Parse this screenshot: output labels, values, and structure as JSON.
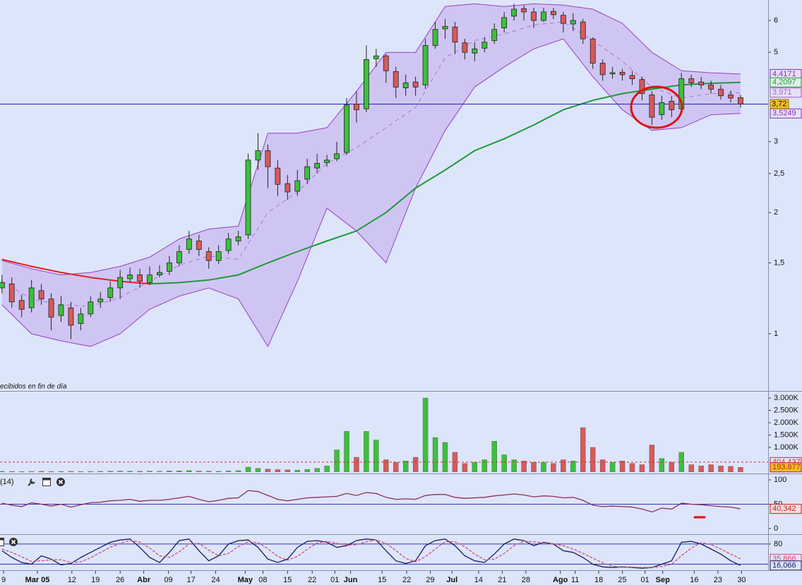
{
  "chart_data": [
    {
      "type": "candlestick",
      "log_scale": true,
      "xlim": [
        -0.2,
        77.8
      ],
      "ylim": [
        0.724,
        6.745
      ],
      "yticks": [
        6,
        5,
        3,
        {
          "value": 2.5,
          "label": "2,5"
        },
        2,
        {
          "value": 1.5,
          "label": "1,5"
        },
        1
      ],
      "up_color": "#3cc03c",
      "down_color": "#d85a5a",
      "open": [
        1.3,
        1.33,
        1.21,
        1.16,
        1.28,
        1.22,
        1.11,
        1.16,
        1.06,
        1.12,
        1.2,
        1.23,
        1.3,
        1.37,
        1.4,
        1.34,
        1.4,
        1.43,
        1.5,
        1.62,
        1.7,
        1.6,
        1.52,
        1.61,
        1.7,
        1.76,
        2.7,
        2.85,
        2.58,
        2.36,
        2.26,
        2.42,
        2.58,
        2.66,
        2.72,
        2.82,
        3.72,
        3.62,
        4.82,
        4.9,
        4.48,
        4.08,
        4.22,
        4.15,
        5.2,
        5.72,
        5.78,
        5.28,
        4.98,
        5.12,
        5.35,
        5.75,
        6.15,
        6.42,
        6.3,
        6.0,
        6.32,
        6.18,
        5.88,
        5.95,
        5.4,
        4.7,
        4.42,
        4.46,
        4.38,
        4.28,
        3.92,
        3.5,
        3.78,
        3.62,
        4.3,
        4.22,
        4.15,
        4.05,
        3.92,
        3.86
      ],
      "high": [
        1.4,
        1.38,
        1.25,
        1.36,
        1.33,
        1.26,
        1.24,
        1.2,
        1.16,
        1.24,
        1.27,
        1.35,
        1.44,
        1.46,
        1.45,
        1.47,
        1.48,
        1.56,
        1.66,
        1.8,
        1.76,
        1.64,
        1.66,
        1.78,
        1.8,
        2.8,
        3.15,
        2.95,
        2.7,
        2.48,
        2.55,
        2.72,
        2.8,
        2.78,
        3.0,
        3.85,
        4.0,
        5.2,
        5.1,
        4.95,
        4.6,
        4.4,
        4.35,
        5.4,
        5.95,
        6.05,
        5.95,
        5.4,
        5.3,
        5.45,
        5.9,
        6.3,
        6.6,
        6.55,
        6.45,
        6.45,
        6.45,
        6.3,
        6.25,
        6.05,
        5.45,
        4.8,
        4.6,
        4.55,
        4.5,
        4.35,
        4.0,
        3.9,
        3.9,
        4.45,
        4.4,
        4.35,
        4.25,
        4.15,
        4.02,
        3.92
      ],
      "low": [
        1.26,
        1.16,
        1.1,
        1.13,
        1.18,
        1.02,
        1.07,
        0.97,
        1.02,
        1.1,
        1.16,
        1.2,
        1.22,
        1.34,
        1.3,
        1.32,
        1.38,
        1.4,
        1.47,
        1.58,
        1.56,
        1.45,
        1.49,
        1.58,
        1.66,
        1.72,
        2.55,
        2.3,
        2.2,
        2.15,
        2.2,
        2.35,
        2.5,
        2.6,
        2.68,
        2.78,
        3.35,
        3.55,
        4.6,
        4.2,
        3.85,
        3.9,
        3.9,
        4.05,
        5.1,
        5.4,
        4.95,
        4.8,
        4.75,
        5.0,
        5.25,
        5.6,
        6.0,
        6.0,
        5.75,
        5.95,
        6.05,
        5.6,
        5.65,
        5.25,
        4.55,
        4.25,
        4.3,
        4.25,
        4.15,
        3.8,
        3.3,
        3.4,
        3.45,
        3.58,
        4.1,
        4.05,
        3.95,
        3.82,
        3.75,
        3.65
      ],
      "close": [
        1.34,
        1.2,
        1.15,
        1.3,
        1.22,
        1.1,
        1.18,
        1.05,
        1.12,
        1.2,
        1.22,
        1.3,
        1.38,
        1.4,
        1.35,
        1.4,
        1.42,
        1.5,
        1.6,
        1.72,
        1.62,
        1.52,
        1.6,
        1.72,
        1.74,
        2.7,
        2.85,
        2.6,
        2.35,
        2.25,
        2.4,
        2.6,
        2.65,
        2.7,
        2.8,
        3.7,
        3.6,
        4.8,
        4.9,
        4.5,
        4.1,
        4.2,
        4.1,
        5.2,
        5.7,
        5.8,
        5.3,
        5.0,
        5.1,
        5.3,
        5.7,
        6.1,
        6.4,
        6.3,
        6.0,
        6.3,
        6.2,
        5.9,
        6.0,
        5.4,
        4.7,
        4.4,
        4.45,
        4.4,
        4.3,
        3.95,
        3.45,
        3.75,
        3.6,
        4.3,
        4.2,
        4.15,
        4.05,
        3.9,
        3.85,
        3.72
      ],
      "overlay_x": [
        0,
        3,
        6,
        9,
        12,
        15,
        18,
        21,
        24,
        27,
        30,
        33,
        36,
        39,
        42,
        45,
        48,
        51,
        54,
        57,
        60,
        63,
        66,
        69,
        72,
        75
      ],
      "bands": {
        "fill": "#cfc5f3",
        "color": "#9a3fc0",
        "upper": [
          1.52,
          1.45,
          1.4,
          1.42,
          1.47,
          1.55,
          1.72,
          1.82,
          1.85,
          3.15,
          3.15,
          3.25,
          4.0,
          5.0,
          5.0,
          6.5,
          6.6,
          6.5,
          6.6,
          6.55,
          6.4,
          5.9,
          5.0,
          4.5,
          4.45,
          4.4171
        ],
        "middle": [
          1.35,
          1.22,
          1.18,
          1.17,
          1.23,
          1.35,
          1.48,
          1.56,
          1.53,
          2.0,
          2.25,
          2.65,
          2.9,
          3.25,
          3.65,
          4.85,
          5.35,
          5.55,
          5.85,
          5.95,
          5.35,
          4.75,
          4.1,
          3.85,
          3.95,
          3.971
        ],
        "lower": [
          1.18,
          1.0,
          0.96,
          0.93,
          1.0,
          1.15,
          1.24,
          1.3,
          1.22,
          0.93,
          1.35,
          2.05,
          1.8,
          1.5,
          2.3,
          3.2,
          4.1,
          4.6,
          5.1,
          5.4,
          4.35,
          3.6,
          3.2,
          3.25,
          3.5,
          3.5249
        ]
      },
      "lines": [
        {
          "color": "#e02020",
          "values": [
            1.53,
            1.47,
            1.42,
            1.38,
            1.35,
            1.33,
            null,
            null,
            null,
            null,
            null,
            null,
            null,
            null,
            null,
            null,
            null,
            null,
            null,
            null,
            null,
            null,
            null,
            null,
            null,
            null
          ]
        },
        {
          "color": "#1f9a3a",
          "values": [
            null,
            null,
            null,
            null,
            null,
            1.33,
            1.34,
            1.36,
            1.4,
            1.5,
            1.6,
            1.7,
            1.8,
            2.0,
            2.3,
            2.55,
            2.85,
            3.05,
            3.3,
            3.6,
            3.8,
            3.95,
            4.05,
            4.15,
            4.19,
            4.2097
          ]
        }
      ],
      "price_line": {
        "value": 3.72,
        "label": "3,72",
        "color": "#2020c0"
      },
      "last_labels": [
        {
          "value": 4.4171,
          "label": "4,4171",
          "color": "#8030b0",
          "fill": "#e8e0fa"
        },
        {
          "value": 4.2097,
          "label": "4,2097",
          "color": "#1f9a3a",
          "fill": "#e0f0e4"
        },
        {
          "value": 3.971,
          "label": "3,971",
          "color": "#9a60c0",
          "fill": "#e8e0fa"
        },
        {
          "value": 3.5249,
          "label": "3,5249",
          "color": "#8030b0",
          "fill": "#e8e0fa"
        }
      ],
      "status_text": "ecibidos en fin de día"
    },
    {
      "type": "volume",
      "xlim": [
        -0.2,
        77.8
      ],
      "ylim": [
        0,
        3230
      ],
      "yticks": [
        {
          "value": 3000,
          "label": "3.000K"
        },
        {
          "value": 2500,
          "label": "2.500K"
        },
        {
          "value": 2000,
          "label": "2.000K"
        },
        {
          "value": 1500,
          "label": "1.500K"
        },
        {
          "value": 1000,
          "label": "1.000K"
        }
      ],
      "values": [
        30,
        25,
        20,
        25,
        30,
        20,
        25,
        30,
        20,
        25,
        30,
        35,
        40,
        35,
        30,
        40,
        30,
        45,
        50,
        60,
        40,
        35,
        30,
        45,
        60,
        200,
        150,
        120,
        100,
        90,
        80,
        110,
        150,
        250,
        900,
        1650,
        600,
        1650,
        1300,
        500,
        400,
        450,
        600,
        3000,
        1400,
        1200,
        800,
        350,
        400,
        500,
        1250,
        700,
        500,
        450,
        400,
        400,
        350,
        500,
        450,
        1800,
        1000,
        500,
        400,
        450,
        350,
        300,
        1100,
        550,
        400,
        800,
        300,
        250,
        300,
        250,
        230,
        193.877
      ],
      "ma_line": {
        "value": 404.437,
        "label": "404.437",
        "color": "#d03030"
      },
      "last_label": {
        "value": 193.877,
        "label": "193.877",
        "color": "#c02020",
        "fill": "#f0c020"
      }
    },
    {
      "type": "line",
      "title": "(14)",
      "xlim": [
        -0.2,
        77.8
      ],
      "ylim": [
        -8.7,
        110.1
      ],
      "yticks": [
        100,
        50,
        0
      ],
      "ref_lines": [
        50
      ],
      "series": [
        {
          "color": "#8b2f55",
          "values": [
            52,
            48,
            45,
            53,
            50,
            46,
            50,
            44,
            49,
            53,
            54,
            57,
            58,
            60,
            56,
            58,
            58,
            60,
            63,
            66,
            60,
            55,
            58,
            62,
            63,
            78,
            76,
            68,
            60,
            57,
            60,
            63,
            64,
            65,
            66,
            72,
            68,
            74,
            72,
            64,
            60,
            61,
            60,
            68,
            70,
            70,
            64,
            62,
            63,
            64,
            67,
            69,
            71,
            69,
            65,
            67,
            66,
            63,
            64,
            58,
            48,
            45,
            46,
            45,
            44,
            40,
            34,
            42,
            40,
            52,
            50,
            49,
            47,
            45,
            44,
            40.342
          ]
        }
      ],
      "last_labels": [
        {
          "value": 40.342,
          "label": "40,342",
          "color": "#c02020",
          "fill": "#f4dede"
        }
      ]
    },
    {
      "type": "line",
      "xlim": [
        -0.2,
        77.8
      ],
      "ylim": [
        0,
        105
      ],
      "yticks": [
        80
      ],
      "ref_lines": [
        80,
        20
      ],
      "series": [
        {
          "color": "#1a1a60",
          "values": [
            60,
            40,
            25,
            20,
            45,
            35,
            18,
            22,
            40,
            55,
            70,
            85,
            92,
            95,
            70,
            40,
            25,
            55,
            90,
            95,
            60,
            30,
            45,
            80,
            90,
            92,
            70,
            35,
            25,
            35,
            70,
            88,
            90,
            85,
            70,
            75,
            90,
            95,
            92,
            60,
            30,
            22,
            30,
            75,
            90,
            95,
            75,
            45,
            30,
            25,
            50,
            80,
            95,
            90,
            75,
            85,
            80,
            60,
            55,
            40,
            20,
            12,
            10,
            12,
            10,
            8,
            10,
            20,
            30,
            85,
            88,
            80,
            65,
            50,
            30,
            16.066
          ]
        },
        {
          "color": "#d05070",
          "dashed": true,
          "values": [
            65,
            55,
            42,
            28,
            30,
            33,
            33,
            25,
            27,
            39,
            55,
            70,
            82,
            91,
            86,
            68,
            45,
            40,
            57,
            80,
            82,
            62,
            45,
            52,
            72,
            87,
            84,
            66,
            43,
            32,
            43,
            64,
            83,
            88,
            82,
            77,
            78,
            87,
            92,
            82,
            61,
            37,
            27,
            42,
            65,
            87,
            87,
            72,
            50,
            33,
            35,
            52,
            75,
            88,
            87,
            83,
            80,
            75,
            65,
            52,
            38,
            24,
            14,
            11,
            11,
            10,
            10,
            13,
            20,
            45,
            68,
            84,
            78,
            65,
            50,
            35.866
          ]
        }
      ],
      "last_labels": [
        {
          "value": 35.866,
          "label": "35,866",
          "color": "#d05070",
          "fill": "#dde5fa"
        },
        {
          "value": 16.066,
          "label": "16,066",
          "color": "#1a1a60",
          "fill": "#dde5fa"
        }
      ],
      "xticks": [
        {
          "value": 0.16,
          "label": "9"
        },
        {
          "value": 3.6,
          "label": "Mar 05"
        },
        {
          "value": 7.1,
          "label": "12"
        },
        {
          "value": 9.5,
          "label": "19"
        },
        {
          "value": 12.0,
          "label": "26"
        },
        {
          "value": 14.4,
          "label": "Abr"
        },
        {
          "value": 16.9,
          "label": "09"
        },
        {
          "value": 19.2,
          "label": "17"
        },
        {
          "value": 21.7,
          "label": "24"
        },
        {
          "value": 24.7,
          "label": "May"
        },
        {
          "value": 26.5,
          "label": "08"
        },
        {
          "value": 29.0,
          "label": "15"
        },
        {
          "value": 31.5,
          "label": "22"
        },
        {
          "value": 33.8,
          "label": "01"
        },
        {
          "value": 35.4,
          "label": "Jun"
        },
        {
          "value": 38.6,
          "label": "15"
        },
        {
          "value": 41.1,
          "label": "22"
        },
        {
          "value": 43.5,
          "label": "29"
        },
        {
          "value": 45.7,
          "label": "Jul"
        },
        {
          "value": 48.4,
          "label": "14"
        },
        {
          "value": 50.8,
          "label": "21"
        },
        {
          "value": 53.2,
          "label": "28"
        },
        {
          "value": 56.7,
          "label": "Ago"
        },
        {
          "value": 58.2,
          "label": "11"
        },
        {
          "value": 60.6,
          "label": "18"
        },
        {
          "value": 63.0,
          "label": "25"
        },
        {
          "value": 65.3,
          "label": "01"
        },
        {
          "value": 67.1,
          "label": "Sep"
        },
        {
          "value": 70.3,
          "label": "16"
        },
        {
          "value": 72.7,
          "label": "23"
        },
        {
          "value": 75.1,
          "label": "30"
        }
      ]
    }
  ]
}
